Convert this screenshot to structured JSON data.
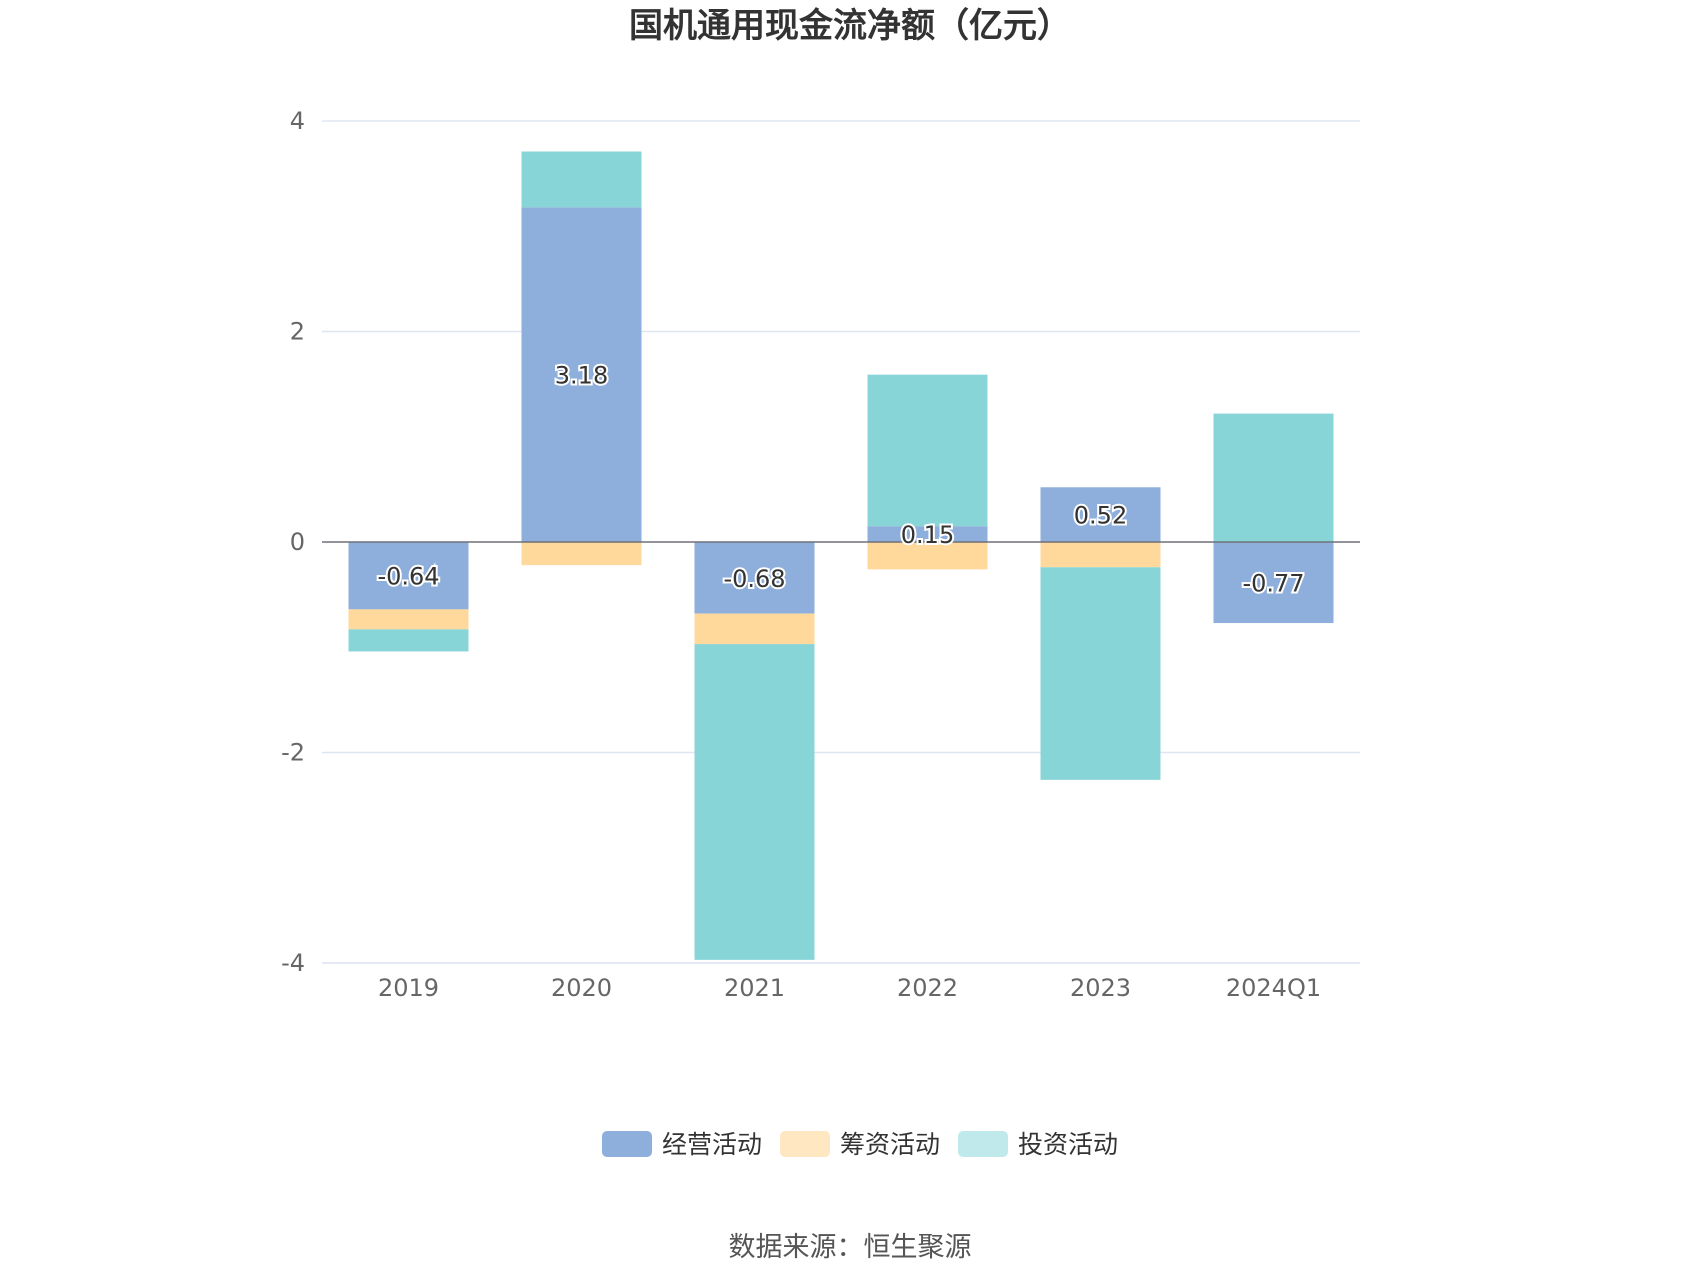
{
  "chart_data": {
    "type": "bar",
    "stacked": true,
    "title": "国机通用现金流净额（亿元）",
    "categories": [
      "2019",
      "2020",
      "2021",
      "2022",
      "2023",
      "2024Q1"
    ],
    "series": [
      {
        "name": "经营活动",
        "color": "#8eaedb",
        "values": [
          -0.64,
          3.18,
          -0.68,
          0.15,
          0.52,
          -0.77
        ],
        "labeled": true
      },
      {
        "name": "筹资活动",
        "color": "#ffd89b",
        "values": [
          -0.19,
          -0.22,
          -0.29,
          -0.26,
          -0.24,
          0.0
        ],
        "labeled": false
      },
      {
        "name": "投资活动",
        "color": "#88d5d8",
        "values": [
          -0.21,
          0.53,
          -3.0,
          1.44,
          -2.02,
          1.22
        ],
        "labeled": false
      }
    ],
    "data_labels": [
      "-0.64",
      "3.18",
      "-0.68",
      "0.15",
      "0.52",
      "-0.77"
    ],
    "ylim": [
      -4,
      4
    ],
    "yticks": [
      "4",
      "2",
      "0",
      "-2",
      "-4"
    ],
    "ytick_values": [
      4,
      2,
      0,
      -2,
      -4
    ],
    "grid": true,
    "legend_position": "bottom",
    "legend_colors": [
      "#8eaedb",
      "#ffe7c2",
      "#bfe9ea"
    ]
  },
  "source_text": "数据来源：恒生聚源"
}
